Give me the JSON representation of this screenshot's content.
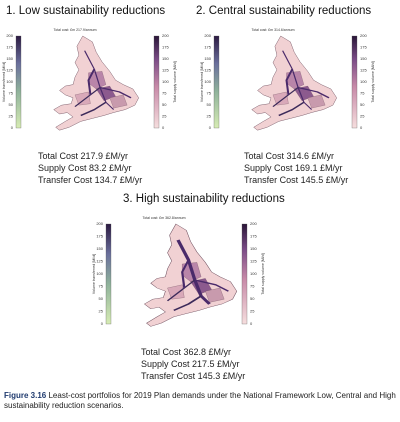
{
  "panels": [
    {
      "title": "1. Low sustainability reductions",
      "map_note": "Total cost: £m 217.9/annum",
      "costs": [
        "Total Cost 217.9 £M/yr",
        "Supply Cost 83.2 £M/yr",
        "Transfer Cost 134.7 £M/yr"
      ]
    },
    {
      "title": "2. Central sustainability reductions",
      "map_note": "Total cost: £m 314.6/annum",
      "costs": [
        "Total Cost 314.6 £M/yr",
        "Supply Cost 169.1 £M/yr",
        "Transfer Cost 145.5 £M/yr"
      ]
    },
    {
      "title": "3. High sustainability reductions",
      "map_note": "Total cost: £m 362.8/annum",
      "costs": [
        "Total Cost 362.8 £M/yr",
        "Supply Cost 217.5 £M/yr",
        "Transfer Cost 145.3 £M/yr"
      ]
    }
  ],
  "colorbar": {
    "left_label": "Volume transferred [Ml/d]",
    "right_label": "Total supply volume [Ml/d]",
    "ticks": [
      0,
      25,
      50,
      75,
      100,
      125,
      150,
      175,
      200
    ]
  },
  "caption": {
    "label": "Figure 3.16",
    "text": " Least-cost portfolios for 2019 Plan demands under the National Framework Low, Central and High sustainability reduction scenarios."
  }
}
